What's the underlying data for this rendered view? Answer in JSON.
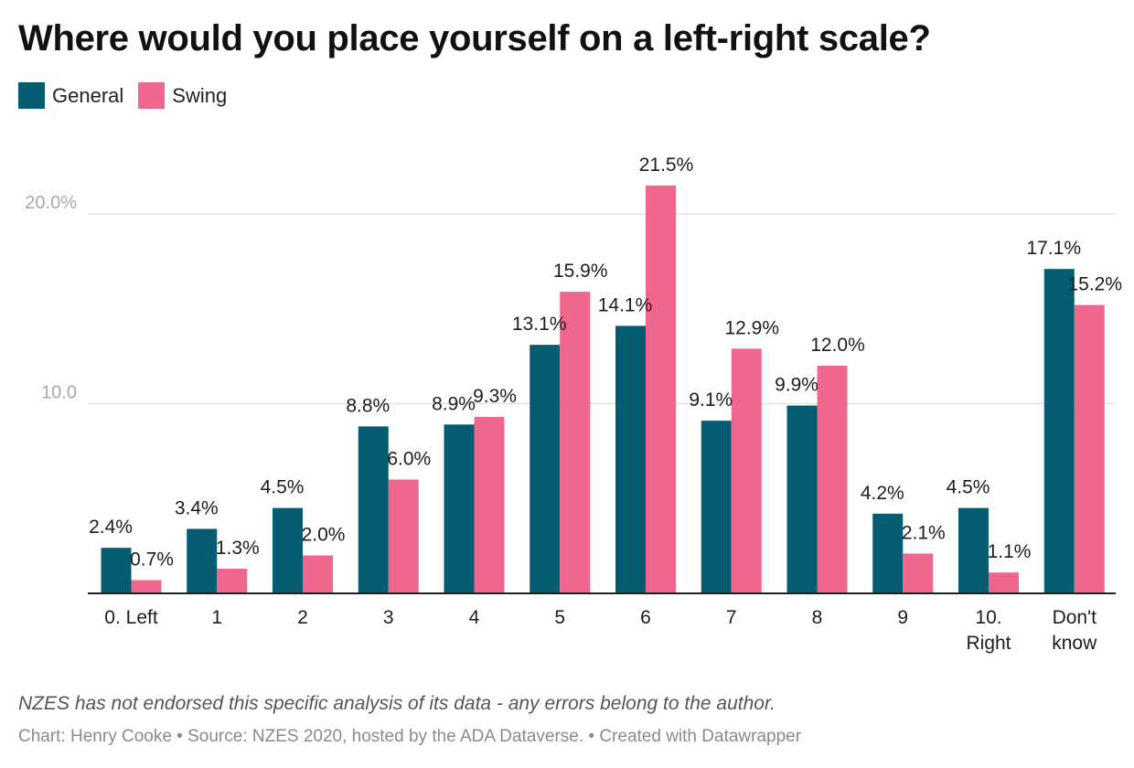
{
  "chart_data": {
    "type": "bar",
    "title": "Where would you place yourself on a left-right scale?",
    "categories": [
      "0. Left",
      "1",
      "2",
      "3",
      "4",
      "5",
      "6",
      "7",
      "8",
      "9",
      "10. Right",
      "Don't know"
    ],
    "category_lines": [
      [
        "0. Left"
      ],
      [
        "1"
      ],
      [
        "2"
      ],
      [
        "3"
      ],
      [
        "4"
      ],
      [
        "5"
      ],
      [
        "6"
      ],
      [
        "7"
      ],
      [
        "8"
      ],
      [
        "9"
      ],
      [
        "10.",
        "Right"
      ],
      [
        "Don't",
        "know"
      ]
    ],
    "series": [
      {
        "name": "General",
        "color": "#055b6f",
        "values": [
          2.4,
          3.4,
          4.5,
          8.8,
          8.9,
          13.1,
          14.1,
          9.1,
          9.9,
          4.2,
          4.5,
          17.1
        ],
        "labels": [
          "2.4%",
          "3.4%",
          "4.5%",
          "8.8%",
          "8.9%",
          "13.1%",
          "14.1%",
          "9.1%",
          "9.9%",
          "4.2%",
          "4.5%",
          "17.1%"
        ]
      },
      {
        "name": "Swing",
        "color": "#f0678e",
        "values": [
          0.7,
          1.3,
          2.0,
          6.0,
          9.3,
          15.9,
          21.5,
          12.9,
          12.0,
          2.1,
          1.1,
          15.2
        ],
        "labels": [
          "0.7%",
          "1.3%",
          "2.0%",
          "6.0%",
          "9.3%",
          "15.9%",
          "21.5%",
          "12.9%",
          "12.0%",
          "2.1%",
          "1.1%",
          "15.2%"
        ]
      }
    ],
    "yticks": [
      {
        "value": 10,
        "label": "10.0"
      },
      {
        "value": 20,
        "label": "20.0%"
      }
    ],
    "ylim": [
      0,
      22
    ],
    "grid": true,
    "legend": "top-left"
  },
  "footer": {
    "note": "NZES has not endorsed this specific analysis of its data - any errors belong to the author.",
    "credit": "Chart: Henry Cooke • Source: NZES 2020, hosted by the ADA Dataverse. • Created with Datawrapper"
  }
}
